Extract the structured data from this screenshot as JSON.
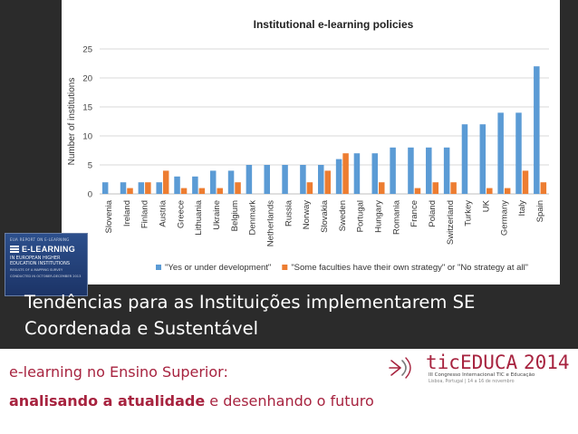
{
  "chart_data": {
    "type": "bar",
    "title": "Institutional e-learning policies",
    "ylabel": "Number of institutions",
    "xlabel": "",
    "ylim": [
      0,
      25
    ],
    "yticks": [
      0,
      5,
      10,
      15,
      20,
      25
    ],
    "grid": true,
    "legend_position": "bottom",
    "categories": [
      "Slovenia",
      "Ireland",
      "Finland",
      "Austria",
      "Greece",
      "Lithuania",
      "Ukraine",
      "Belgium",
      "Denmark",
      "Netherlands",
      "Russia",
      "Norway",
      "Slovakia",
      "Sweden",
      "Portugal",
      "Hungary",
      "Romania",
      "France",
      "Poland",
      "Switzerland",
      "Turkey",
      "UK",
      "Germany",
      "Italy",
      "Spain"
    ],
    "series": [
      {
        "name": "\"Yes or under development\"",
        "color": "#5b9bd5",
        "values": [
          2,
          2,
          2,
          2,
          3,
          3,
          4,
          4,
          5,
          5,
          5,
          5,
          5,
          6,
          7,
          7,
          8,
          8,
          8,
          8,
          12,
          12,
          14,
          14,
          22
        ]
      },
      {
        "name": "\"Some faculties have their own strategy\" or \"No strategy at all\"",
        "color": "#ed7d31",
        "values": [
          0,
          1,
          2,
          4,
          1,
          1,
          1,
          2,
          0,
          0,
          0,
          2,
          4,
          7,
          0,
          2,
          0,
          1,
          2,
          2,
          0,
          1,
          1,
          4,
          2
        ]
      }
    ]
  },
  "thumbnail": {
    "top_text": "EUA REPORT ON E-LEARNING",
    "title": "E-LEARNING",
    "subtitle": "IN EUROPEAN HIGHER EDUCATION INSTITUTIONS",
    "line1": "RESULTS OF A MAPPING SURVEY",
    "line2": "CONDUCTED IN OCTOBER-DECEMBER 2013"
  },
  "heading": {
    "line1": "Tendências para as Instituições implementarem SE",
    "line2": "Coordenada e Sustentável"
  },
  "footer": {
    "line1": "e-learning no Ensino Superior:",
    "line2_bold": "analisando a atualidade",
    "line2_rest": " e desenhando o futuro"
  },
  "logo": {
    "name_prefix": "tic",
    "name_main": "EDUCA",
    "year": "2014",
    "subtitle": "III Congresso Internacional TIC e Educação",
    "details": "Lisboa, Portugal  |  14 a 16 de novembro"
  }
}
